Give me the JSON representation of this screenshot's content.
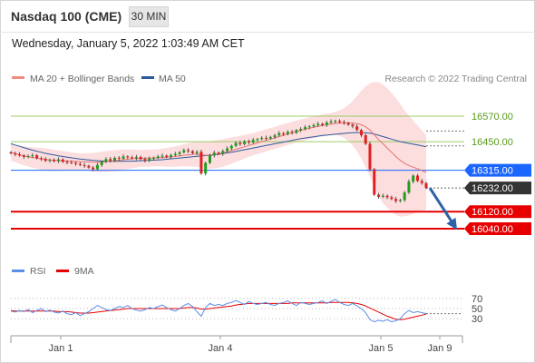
{
  "header": {
    "title": "Nasdaq 100 (CME)",
    "timeframe": "30 MIN",
    "datetime": "Wednesday, January 5, 2022 1:03:49 AM CET"
  },
  "legend": {
    "items": [
      {
        "label": "MA 20 + Bollinger Bands",
        "color": "#f28b82"
      },
      {
        "label": "MA 50",
        "color": "#2e5a9e"
      }
    ],
    "copyright": "Research © 2022 Trading Central"
  },
  "chart_data": [
    {
      "type": "candlestick",
      "title": "",
      "ylim": [
        15920,
        16690
      ],
      "levels": [
        {
          "value": 16570.0,
          "label": "16570.00",
          "style": "resistance",
          "line_color": "#9ccc65",
          "text_color": "#5a9a1a"
        },
        {
          "value": 16450.0,
          "label": "16450.00",
          "style": "resistance",
          "line_color": "#9ccc65",
          "text_color": "#5a9a1a"
        },
        {
          "value": 16315.0,
          "label": "16315.00",
          "style": "pivot",
          "line_color": "#1a66ff",
          "text_color": "#ffffff"
        },
        {
          "value": 16232.0,
          "label": "16232.00",
          "style": "last-price",
          "line_color": "#333333",
          "text_color": "#ffffff"
        },
        {
          "value": 16120.0,
          "label": "16120.00",
          "style": "support",
          "line_color": "#e60000",
          "text_color": "#ffffff"
        },
        {
          "value": 16040.0,
          "label": "16040.00",
          "style": "support",
          "line_color": "#e60000",
          "text_color": "#ffffff"
        }
      ],
      "closes": [
        16395,
        16390,
        16385,
        16378,
        16382,
        16386,
        16372,
        16368,
        16360,
        16364,
        16358,
        16366,
        16355,
        16352,
        16350,
        16345,
        16340,
        16336,
        16328,
        16320,
        16340,
        16355,
        16368,
        16360,
        16374,
        16370,
        16380,
        16376,
        16372,
        16378,
        16368,
        16360,
        16370,
        16374,
        16380,
        16384,
        16378,
        16386,
        16392,
        16400,
        16410,
        16405,
        16396,
        16402,
        16300,
        16350,
        16385,
        16398,
        16392,
        16406,
        16418,
        16430,
        16444,
        16438,
        16452,
        16446,
        16458,
        16462,
        16468,
        16465,
        16472,
        16480,
        16490,
        16486,
        16496,
        16492,
        16504,
        16510,
        16518,
        16522,
        16528,
        16534,
        16528,
        16540,
        16545,
        16548,
        16542,
        16538,
        16530,
        16522,
        16505,
        16480,
        16440,
        16320,
        16200,
        16190,
        16195,
        16188,
        16180,
        16170,
        16175,
        16210,
        16262,
        16290,
        16265,
        16255,
        16232
      ],
      "ma20": [
        16400,
        16394,
        16388,
        16383,
        16379,
        16375,
        16372,
        16369,
        16366,
        16364,
        16362,
        16361,
        16360,
        16359,
        16358,
        16357,
        16356,
        16355,
        16354,
        16353,
        16353,
        16354,
        16356,
        16358,
        16360,
        16362,
        16365,
        16367,
        16369,
        16370,
        16371,
        16372,
        16372,
        16373,
        16374,
        16375,
        16376,
        16378,
        16380,
        16383,
        16386,
        16388,
        16390,
        16392,
        16388,
        16386,
        16387,
        16390,
        16393,
        16397,
        16402,
        16408,
        16414,
        16420,
        16426,
        16432,
        16438,
        16444,
        16450,
        16456,
        16462,
        16468,
        16474,
        16480,
        16486,
        16492,
        16498,
        16503,
        16508,
        16513,
        16518,
        16522,
        16526,
        16530,
        16533,
        16536,
        16537,
        16538,
        16538,
        16537,
        16535,
        16530,
        16520,
        16505,
        16482,
        16460,
        16440,
        16420,
        16400,
        16380,
        16362,
        16348,
        16338,
        16330,
        16322,
        16314,
        16305
      ],
      "ma50": [
        16440,
        16434,
        16428,
        16422,
        16416,
        16410,
        16405,
        16400,
        16395,
        16391,
        16387,
        16383,
        16380,
        16377,
        16374,
        16371,
        16368,
        16366,
        16364,
        16362,
        16360,
        16359,
        16358,
        16357,
        16357,
        16357,
        16357,
        16358,
        16358,
        16359,
        16360,
        16361,
        16362,
        16363,
        16364,
        16365,
        16367,
        16369,
        16371,
        16373,
        16375,
        16377,
        16379,
        16381,
        16382,
        16384,
        16386,
        16388,
        16391,
        16394,
        16397,
        16400,
        16404,
        16408,
        16412,
        16416,
        16420,
        16424,
        16428,
        16432,
        16436,
        16440,
        16444,
        16448,
        16452,
        16456,
        16460,
        16464,
        16467,
        16470,
        16473,
        16476,
        16479,
        16481,
        16483,
        16485,
        16487,
        16489,
        16491,
        16492,
        16493,
        16493,
        16492,
        16490,
        16486,
        16480,
        16474,
        16468,
        16462,
        16456,
        16450,
        16446,
        16442,
        16438,
        16434,
        16430,
        16426
      ],
      "band_width": [
        40,
        40,
        42,
        44,
        46,
        48,
        50,
        52,
        52,
        52,
        50,
        48,
        46,
        44,
        42,
        40,
        40,
        40,
        42,
        44,
        46,
        48,
        50,
        50,
        50,
        50,
        48,
        46,
        44,
        42,
        40,
        40,
        40,
        40,
        40,
        42,
        44,
        46,
        48,
        50,
        52,
        55,
        58,
        60,
        62,
        64,
        65,
        66,
        66,
        65,
        64,
        62,
        60,
        58,
        56,
        54,
        52,
        52,
        52,
        52,
        52,
        52,
        52,
        52,
        52,
        52,
        52,
        52,
        52,
        52,
        52,
        52,
        52,
        52,
        52,
        55,
        60,
        70,
        85,
        105,
        130,
        160,
        190,
        220,
        250,
        270,
        280,
        282,
        280,
        275,
        265,
        250,
        235,
        220,
        205,
        190,
        175
      ],
      "arrow": {
        "from": 16232,
        "to": 16035
      }
    },
    {
      "type": "line",
      "title": "",
      "ylim": [
        0,
        100
      ],
      "yticks": [
        30,
        50,
        70
      ],
      "legend": [
        {
          "label": "RSI",
          "color": "#5b8ee6"
        },
        {
          "label": "9MA",
          "color": "#e60000"
        }
      ],
      "rsi": [
        45,
        43,
        46,
        44,
        48,
        42,
        46,
        50,
        44,
        47,
        43,
        41,
        45,
        40,
        38,
        42,
        36,
        40,
        44,
        50,
        56,
        52,
        48,
        46,
        50,
        54,
        52,
        56,
        50,
        47,
        45,
        48,
        52,
        50,
        54,
        57,
        52,
        48,
        45,
        50,
        56,
        60,
        54,
        44,
        35,
        52,
        60,
        56,
        58,
        56,
        60,
        62,
        66,
        62,
        58,
        64,
        60,
        58,
        60,
        62,
        58,
        56,
        60,
        62,
        65,
        60,
        56,
        62,
        60,
        58,
        60,
        62,
        65,
        60,
        64,
        68,
        62,
        58,
        56,
        60,
        55,
        50,
        42,
        28,
        24,
        27,
        25,
        28,
        24,
        26,
        30,
        40,
        46,
        42,
        44,
        42,
        40
      ],
      "ma9": [
        46,
        45,
        45,
        45,
        45,
        45,
        45,
        45,
        45,
        45,
        45,
        44,
        44,
        44,
        43,
        42,
        41,
        41,
        41,
        42,
        43,
        44,
        45,
        46,
        47,
        48,
        49,
        50,
        50,
        50,
        50,
        50,
        50,
        50,
        50,
        50,
        50,
        50,
        50,
        50,
        51,
        52,
        52,
        51,
        49,
        49,
        50,
        51,
        52,
        53,
        54,
        55,
        57,
        58,
        59,
        60,
        60,
        60,
        60,
        60,
        60,
        60,
        60,
        60,
        60,
        61,
        61,
        61,
        61,
        61,
        61,
        61,
        61,
        61,
        62,
        62,
        62,
        62,
        62,
        61,
        60,
        58,
        55,
        51,
        47,
        43,
        39,
        35,
        32,
        29,
        28,
        29,
        31,
        33,
        35,
        37,
        39
      ]
    }
  ],
  "x_axis": {
    "labels": [
      "Jan 1",
      "Jan 4",
      "Jan 5",
      "Jan 9"
    ]
  }
}
